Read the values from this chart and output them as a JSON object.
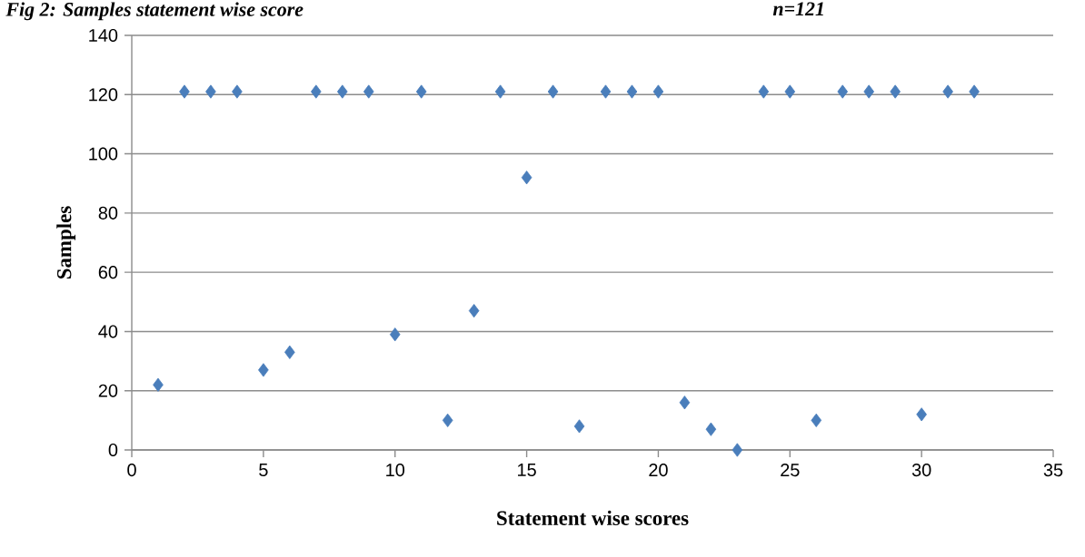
{
  "chart_data": {
    "type": "scatter",
    "title": "Fig 2: Samples statement wise score",
    "annotations": [
      "n=121"
    ],
    "xlabel": "Statement wise scores",
    "ylabel": "Samples",
    "x": [
      1,
      2,
      3,
      4,
      5,
      6,
      7,
      8,
      9,
      10,
      11,
      12,
      13,
      14,
      15,
      16,
      17,
      18,
      19,
      20,
      21,
      22,
      23,
      24,
      25,
      26,
      27,
      28,
      29,
      30,
      31,
      32
    ],
    "values": [
      22,
      121,
      121,
      121,
      27,
      33,
      121,
      121,
      121,
      39,
      121,
      10,
      47,
      121,
      92,
      121,
      8,
      121,
      121,
      121,
      16,
      7,
      0,
      121,
      121,
      10,
      121,
      121,
      121,
      12,
      121,
      121
    ],
    "color": "#4a7ebb",
    "marker": "diamond",
    "grid": "y",
    "xlim": [
      0,
      35
    ],
    "xticks": [
      0,
      5,
      10,
      15,
      20,
      25,
      30,
      35
    ],
    "ylim": [
      0,
      140
    ],
    "yticks": [
      0,
      20,
      40,
      60,
      80,
      100,
      120,
      140
    ]
  }
}
